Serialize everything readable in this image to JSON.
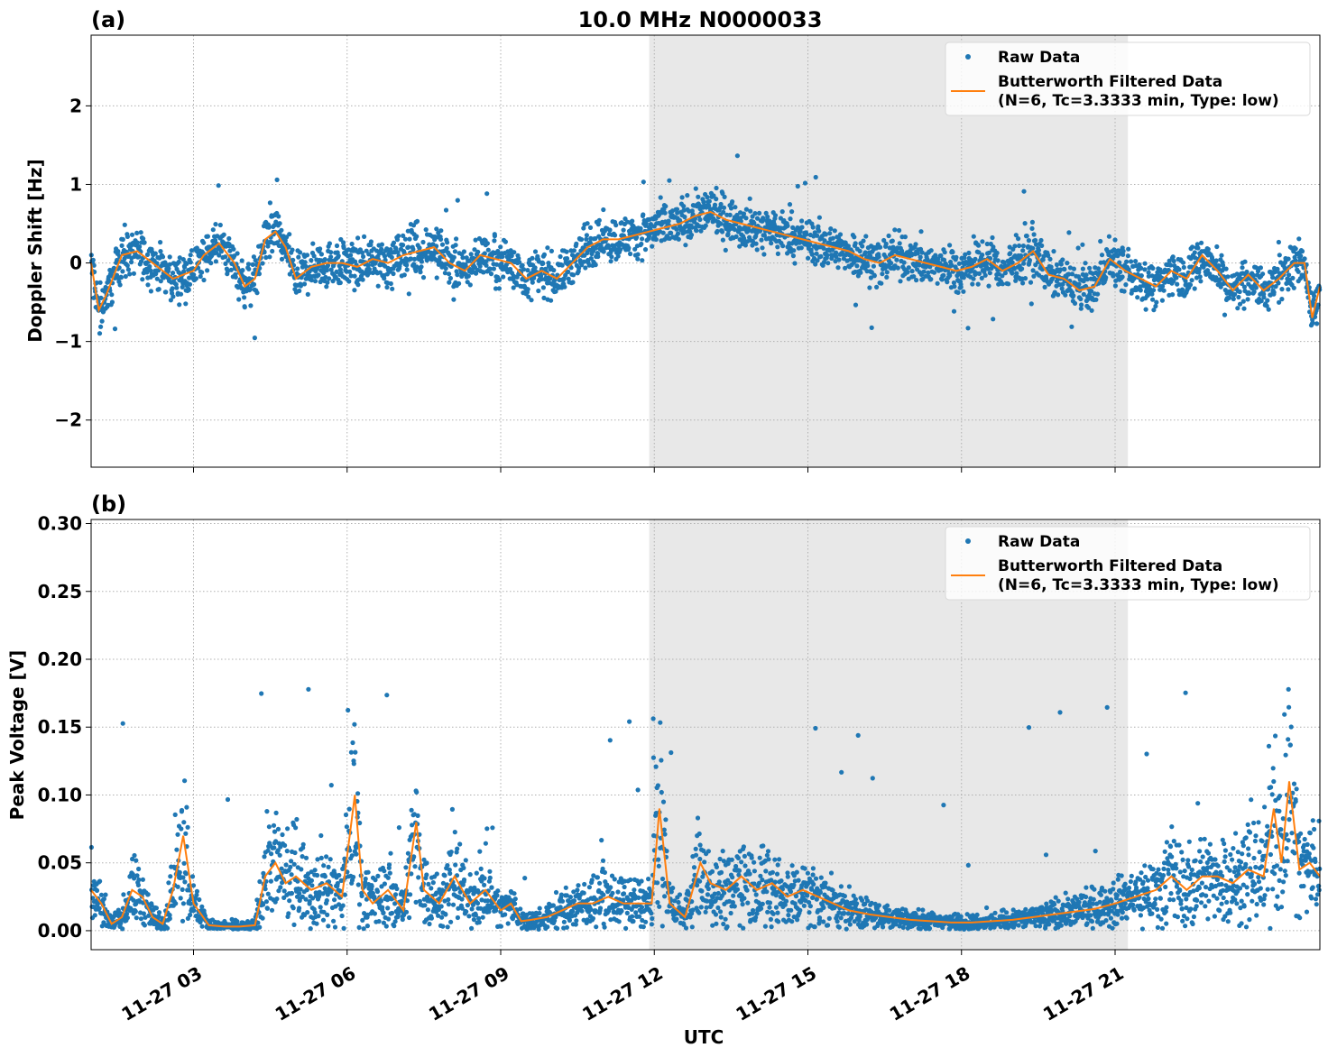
{
  "figure": {
    "title": "10.0 MHz N0000033",
    "xlabel": "UTC",
    "colors": {
      "raw": "#1f77b4",
      "filtered": "#ff7f0e",
      "shade": "#e6e6e6",
      "grid": "#b0b0b0"
    }
  },
  "chart_data": [
    {
      "type": "scatter",
      "panel_label": "(a)",
      "ylabel": "Doppler Shift [Hz]",
      "ylim": [
        -2.6,
        2.9
      ],
      "yticks": [
        -2,
        -1,
        0,
        1,
        2
      ],
      "ytick_labels": [
        "−2",
        "−1",
        "0",
        "1",
        "2"
      ],
      "xlim_hours": [
        1.0,
        25.0
      ],
      "xticks_hours": [
        3,
        6,
        9,
        12,
        15,
        18,
        21
      ],
      "xtick_labels": [
        "11-27 03",
        "11-27 06",
        "11-27 09",
        "11-27 12",
        "11-27 15",
        "11-27 18",
        "11-27 21"
      ],
      "shaded_span_hours": [
        11.9,
        21.25
      ],
      "grid": true,
      "legend": {
        "position": "upper right",
        "raw_label": "Raw Data",
        "filtered_label_line1": "Butterworth Filtered Data",
        "filtered_label_line2": "(N=6, Tc=3.3333 min, Type: low)"
      },
      "series": [
        {
          "name": "Butterworth Filtered Data",
          "x_hours": [
            1.0,
            1.15,
            1.3,
            1.6,
            1.9,
            2.3,
            2.6,
            2.8,
            3.0,
            3.2,
            3.5,
            3.8,
            4.0,
            4.2,
            4.4,
            4.6,
            4.8,
            5.0,
            5.3,
            5.6,
            5.9,
            6.2,
            6.5,
            6.8,
            7.1,
            7.4,
            7.7,
            8.0,
            8.3,
            8.6,
            8.9,
            9.2,
            9.5,
            9.8,
            10.1,
            10.4,
            10.7,
            11.0,
            11.3,
            11.6,
            11.9,
            12.2,
            12.5,
            12.8,
            13.1,
            13.4,
            13.7,
            14.0,
            14.3,
            14.6,
            14.9,
            15.2,
            15.5,
            15.8,
            16.1,
            16.4,
            16.7,
            17.0,
            17.3,
            17.6,
            17.9,
            18.2,
            18.5,
            18.8,
            19.1,
            19.4,
            19.7,
            20.0,
            20.3,
            20.6,
            20.9,
            21.2,
            21.5,
            21.8,
            22.1,
            22.4,
            22.7,
            23.0,
            23.3,
            23.6,
            23.9,
            24.2,
            24.5,
            24.7,
            24.85,
            25.0
          ],
          "y": [
            0.0,
            -0.6,
            -0.4,
            0.1,
            0.15,
            -0.05,
            -0.2,
            -0.15,
            -0.1,
            0.1,
            0.25,
            0.0,
            -0.3,
            -0.2,
            0.3,
            0.4,
            0.2,
            -0.2,
            -0.05,
            0.0,
            0.0,
            -0.05,
            0.05,
            0.0,
            0.1,
            0.15,
            0.2,
            0.0,
            -0.1,
            0.1,
            0.05,
            0.0,
            -0.2,
            -0.1,
            -0.2,
            0.0,
            0.2,
            0.3,
            0.3,
            0.35,
            0.4,
            0.45,
            0.5,
            0.6,
            0.65,
            0.55,
            0.5,
            0.45,
            0.4,
            0.35,
            0.3,
            0.25,
            0.2,
            0.15,
            0.05,
            0.0,
            0.1,
            0.05,
            0.0,
            -0.05,
            -0.1,
            -0.05,
            0.05,
            -0.1,
            0.0,
            0.15,
            -0.15,
            -0.2,
            -0.35,
            -0.3,
            0.05,
            -0.1,
            -0.2,
            -0.3,
            -0.1,
            -0.2,
            0.1,
            -0.1,
            -0.35,
            -0.15,
            -0.35,
            -0.2,
            0.0,
            0.0,
            -0.7,
            -0.3
          ]
        }
      ]
    },
    {
      "type": "scatter",
      "panel_label": "(b)",
      "ylabel": "Peak Voltage [V]",
      "ylim": [
        -0.014,
        0.303
      ],
      "yticks": [
        0.0,
        0.05,
        0.1,
        0.15,
        0.2,
        0.25,
        0.3
      ],
      "ytick_labels": [
        "0.00",
        "0.05",
        "0.10",
        "0.15",
        "0.20",
        "0.25",
        "0.30"
      ],
      "xlim_hours": [
        1.0,
        25.0
      ],
      "xticks_hours": [
        3,
        6,
        9,
        12,
        15,
        18,
        21
      ],
      "xtick_labels": [
        "11-27 03",
        "11-27 06",
        "11-27 09",
        "11-27 12",
        "11-27 15",
        "11-27 18",
        "11-27 21"
      ],
      "shaded_span_hours": [
        11.9,
        21.25
      ],
      "grid": true,
      "legend": {
        "position": "upper right",
        "raw_label": "Raw Data",
        "filtered_label_line1": "Butterworth Filtered Data",
        "filtered_label_line2": "(N=6, Tc=3.3333 min, Type: low)"
      },
      "series": [
        {
          "name": "Butterworth Filtered Data",
          "x_hours": [
            1.0,
            1.2,
            1.4,
            1.6,
            1.8,
            2.0,
            2.2,
            2.4,
            2.6,
            2.8,
            3.0,
            3.3,
            3.6,
            3.9,
            4.2,
            4.4,
            4.6,
            4.8,
            5.0,
            5.3,
            5.6,
            5.9,
            6.15,
            6.3,
            6.5,
            6.8,
            7.1,
            7.35,
            7.5,
            7.8,
            8.1,
            8.4,
            8.7,
            9.0,
            9.2,
            9.4,
            9.6,
            9.9,
            10.2,
            10.5,
            10.8,
            11.1,
            11.4,
            11.7,
            11.95,
            12.1,
            12.3,
            12.6,
            12.9,
            13.1,
            13.4,
            13.7,
            14.0,
            14.3,
            14.6,
            14.9,
            15.2,
            15.5,
            15.8,
            16.2,
            16.6,
            17.0,
            17.4,
            17.8,
            18.2,
            18.6,
            19.0,
            19.4,
            19.8,
            20.2,
            20.6,
            21.0,
            21.4,
            21.8,
            22.1,
            22.4,
            22.7,
            23.0,
            23.3,
            23.6,
            23.9,
            24.1,
            24.25,
            24.4,
            24.6,
            24.8,
            25.0
          ],
          "y": [
            0.03,
            0.02,
            0.005,
            0.01,
            0.03,
            0.025,
            0.01,
            0.005,
            0.03,
            0.07,
            0.02,
            0.004,
            0.003,
            0.003,
            0.004,
            0.04,
            0.05,
            0.035,
            0.04,
            0.03,
            0.035,
            0.025,
            0.1,
            0.03,
            0.02,
            0.03,
            0.015,
            0.08,
            0.03,
            0.02,
            0.04,
            0.02,
            0.03,
            0.015,
            0.02,
            0.007,
            0.008,
            0.01,
            0.015,
            0.02,
            0.02,
            0.025,
            0.02,
            0.02,
            0.02,
            0.09,
            0.02,
            0.01,
            0.05,
            0.035,
            0.03,
            0.04,
            0.03,
            0.035,
            0.025,
            0.03,
            0.025,
            0.02,
            0.015,
            0.012,
            0.01,
            0.008,
            0.007,
            0.006,
            0.006,
            0.007,
            0.008,
            0.01,
            0.012,
            0.014,
            0.016,
            0.02,
            0.025,
            0.03,
            0.04,
            0.03,
            0.04,
            0.04,
            0.035,
            0.045,
            0.04,
            0.09,
            0.05,
            0.11,
            0.045,
            0.05,
            0.04
          ]
        }
      ]
    }
  ]
}
